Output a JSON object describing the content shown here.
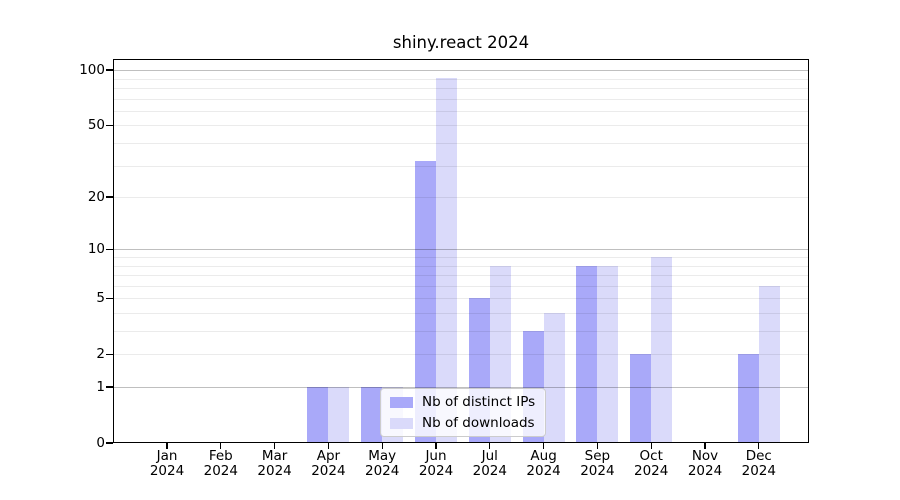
{
  "chart_data": {
    "type": "bar",
    "title": "shiny.react 2024",
    "categories": [
      "Jan",
      "Feb",
      "Mar",
      "Apr",
      "May",
      "Jun",
      "Jul",
      "Aug",
      "Sep",
      "Oct",
      "Nov",
      "Dec"
    ],
    "x_year_label": "2024",
    "series": [
      {
        "name": "Nb of distinct IPs",
        "color": "#a9a9f9",
        "values": [
          0,
          0,
          0,
          1,
          1,
          32,
          5,
          3,
          8,
          2,
          0,
          2
        ]
      },
      {
        "name": "Nb of downloads",
        "color": "#dadafa",
        "values": [
          0,
          0,
          0,
          1,
          1,
          91,
          8,
          4,
          8,
          9,
          0,
          6
        ]
      }
    ],
    "y_axis": {
      "scale": "log1p",
      "tick_values": [
        0,
        1,
        2,
        5,
        10,
        20,
        50,
        100
      ],
      "major_gridlines": [
        1,
        10,
        100
      ],
      "minor_gridlines": [
        2,
        3,
        4,
        5,
        6,
        7,
        8,
        9,
        20,
        30,
        40,
        50,
        60,
        70,
        80,
        90
      ],
      "range": [
        0,
        115
      ]
    },
    "legend": {
      "position": "lower-center"
    },
    "grid": true,
    "colors": {
      "major_grid": "rgba(0,0,0,0.25)",
      "minor_grid": "rgba(0,0,0,0.08)",
      "spine": "#000000",
      "background": "#ffffff",
      "legend_border": "#cccccc",
      "text": "#000000"
    }
  }
}
